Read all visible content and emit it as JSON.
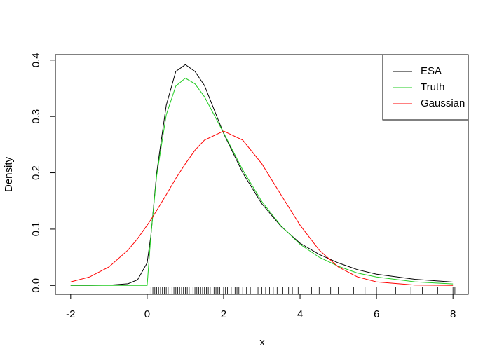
{
  "chart_data": {
    "type": "line",
    "xlabel": "x",
    "ylabel": "Density",
    "x": [
      -2,
      -1.5,
      -1,
      -0.5,
      -0.25,
      0,
      0.1,
      0.25,
      0.5,
      0.75,
      1,
      1.25,
      1.5,
      2,
      2.5,
      3,
      3.5,
      4,
      4.5,
      5,
      5.5,
      6,
      7,
      8
    ],
    "series": [
      {
        "name": "ESA",
        "color": "#000000",
        "values": [
          0,
          0,
          0.0005,
          0.003,
          0.01,
          0.04,
          0.09,
          0.2,
          0.32,
          0.38,
          0.392,
          0.38,
          0.355,
          0.27,
          0.2,
          0.145,
          0.105,
          0.075,
          0.055,
          0.04,
          0.028,
          0.02,
          0.011,
          0.006
        ]
      },
      {
        "name": "Truth",
        "color": "#22cc22",
        "values": [
          0,
          0,
          0,
          0,
          0,
          0,
          0.0905,
          0.195,
          0.303,
          0.354,
          0.368,
          0.358,
          0.335,
          0.271,
          0.205,
          0.149,
          0.106,
          0.073,
          0.05,
          0.034,
          0.022,
          0.015,
          0.0064,
          0.0027
        ]
      },
      {
        "name": "Gaussian",
        "color": "#ff0000",
        "values": [
          0.0063,
          0.0152,
          0.0328,
          0.0628,
          0.083,
          0.107,
          0.117,
          0.133,
          0.161,
          0.19,
          0.216,
          0.24,
          0.258,
          0.274,
          0.258,
          0.216,
          0.161,
          0.107,
          0.0628,
          0.0328,
          0.0152,
          0.0063,
          0.00075,
          6e-05
        ]
      }
    ],
    "rug": [
      0.05,
      0.1,
      0.15,
      0.2,
      0.25,
      0.3,
      0.35,
      0.4,
      0.45,
      0.5,
      0.55,
      0.6,
      0.65,
      0.7,
      0.75,
      0.8,
      0.85,
      0.9,
      0.95,
      1.0,
      1.05,
      1.1,
      1.15,
      1.2,
      1.25,
      1.3,
      1.35,
      1.4,
      1.45,
      1.5,
      1.55,
      1.6,
      1.65,
      1.7,
      1.75,
      1.8,
      1.85,
      1.9,
      2.0,
      2.05,
      2.1,
      2.2,
      2.3,
      2.35,
      2.4,
      2.5,
      2.6,
      2.7,
      2.8,
      2.9,
      3.0,
      3.1,
      3.2,
      3.3,
      3.4,
      3.55,
      3.7,
      3.8,
      3.95,
      4.1,
      4.3,
      4.5,
      4.65,
      4.8,
      5.0,
      5.2,
      5.4,
      5.7,
      6.0,
      6.5,
      6.9,
      7.2,
      7.6,
      8.0,
      8.05
    ],
    "xlim": [
      -2.4,
      8.4
    ],
    "ylim": [
      -0.0158,
      0.4097
    ],
    "xticks": [
      -2,
      0,
      2,
      4,
      6,
      8
    ],
    "yticks": [
      {
        "value": 0,
        "label": "0.0"
      },
      0.1,
      0.2,
      0.3,
      0.4
    ],
    "legend_position": "top-right"
  }
}
